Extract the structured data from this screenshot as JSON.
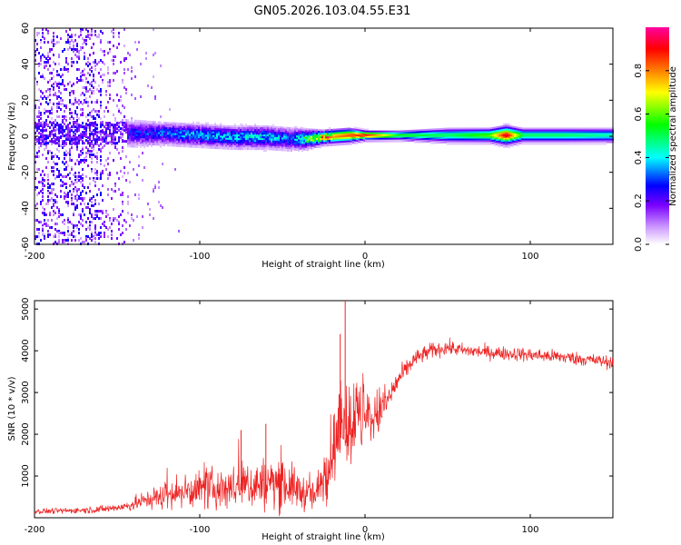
{
  "title": "GN05.2026.103.04.55.E31",
  "chart_data": [
    {
      "type": "heatmap",
      "name": "spectrogram",
      "xlabel": "Height of straight line (km)",
      "ylabel": "Frequency (Hz)",
      "xlim": [
        -200,
        150
      ],
      "ylim": [
        -60,
        60
      ],
      "xticks": [
        -200,
        -100,
        0,
        100
      ],
      "xtick_labels": [
        "-200",
        "-100",
        "0",
        "100"
      ],
      "yticks": [
        -60,
        -40,
        -20,
        0,
        20,
        40,
        60
      ],
      "ytick_labels": [
        "-60",
        "-40",
        "-20",
        "0",
        "20",
        "40",
        "60"
      ],
      "ridge": {
        "x": [
          -145,
          -120,
          -100,
          -80,
          -60,
          -45,
          -35,
          -25,
          -10,
          0,
          20,
          50,
          75,
          85,
          95,
          120,
          150
        ],
        "frequency": [
          2,
          2,
          1,
          0,
          0,
          -1,
          -1,
          0,
          1,
          1,
          1,
          1,
          1,
          1,
          1,
          1,
          1
        ],
        "halfwidth": [
          6,
          5,
          5,
          5,
          5,
          5,
          4,
          3,
          3,
          2,
          2,
          3,
          3,
          4,
          3,
          3,
          3
        ],
        "peak": [
          0.25,
          0.3,
          0.35,
          0.35,
          0.38,
          0.3,
          0.55,
          0.75,
          0.85,
          0.9,
          0.55,
          0.5,
          0.6,
          0.95,
          0.5,
          0.5,
          0.45
        ]
      },
      "noise_region": {
        "x_range": [
          -200,
          -145
        ],
        "frequency_range": [
          -60,
          60
        ]
      },
      "colorbar": {
        "label": "Normalized spectral amplitude",
        "range": [
          0,
          1
        ],
        "ticks": [
          0.0,
          0.2,
          0.4,
          0.6,
          0.8
        ],
        "tick_labels": [
          "0.0",
          "0.2",
          "0.4",
          "0.6",
          "0.8"
        ],
        "colors": [
          "#ffffff",
          "#cc99ff",
          "#7a00ff",
          "#0000ff",
          "#00ffff",
          "#00ff00",
          "#ffff00",
          "#ff8000",
          "#ff0000",
          "#ff00a0"
        ]
      }
    },
    {
      "type": "line",
      "name": "snr",
      "xlabel": "Height of straight line (km)",
      "ylabel": "SNR (10 * v/v)",
      "xlim": [
        -200,
        150
      ],
      "ylim": [
        0,
        5200
      ],
      "xticks": [
        -200,
        -100,
        0,
        100
      ],
      "xtick_labels": [
        "-200",
        "-100",
        "0",
        "100"
      ],
      "yticks": [
        1000,
        2000,
        3000,
        4000,
        5000
      ],
      "ytick_labels": [
        "1000",
        "2000",
        "3000",
        "4000",
        "5000"
      ],
      "color": "#ee2222",
      "envelope": {
        "x": [
          -200,
          -180,
          -160,
          -145,
          -130,
          -110,
          -90,
          -70,
          -50,
          -40,
          -30,
          -25,
          -20,
          -15,
          -10,
          -5,
          0,
          5,
          10,
          15,
          20,
          30,
          40,
          50,
          60,
          80,
          100,
          120,
          150
        ],
        "mean": [
          150,
          170,
          200,
          270,
          450,
          620,
          700,
          780,
          850,
          650,
          500,
          1000,
          1600,
          2000,
          2200,
          2400,
          2300,
          2400,
          2600,
          2900,
          3300,
          3800,
          4000,
          4080,
          4000,
          3950,
          3900,
          3850,
          3720
        ],
        "spread": [
          60,
          60,
          80,
          100,
          220,
          350,
          450,
          550,
          600,
          400,
          350,
          700,
          800,
          900,
          900,
          900,
          700,
          600,
          500,
          350,
          250,
          180,
          170,
          160,
          150,
          150,
          150,
          150,
          140
        ]
      },
      "spikes": [
        {
          "x": -12,
          "y": 5200
        },
        {
          "x": -15,
          "y": 4400
        },
        {
          "x": -60,
          "y": 2250
        },
        {
          "x": -75,
          "y": 2100
        }
      ]
    }
  ]
}
